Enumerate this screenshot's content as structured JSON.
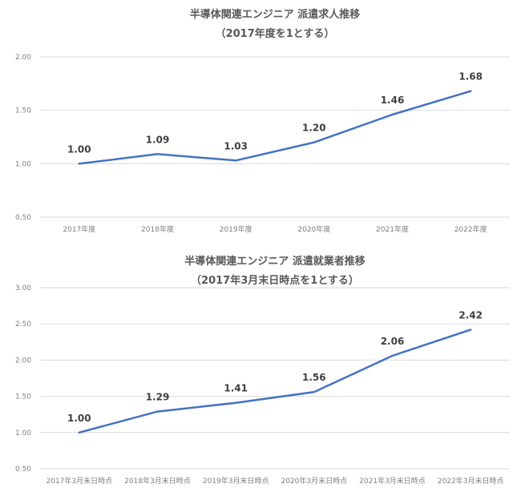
{
  "chart_data": [
    {
      "type": "line",
      "title": "半導体関連エンジニア 派遣求人推移",
      "subtitle": "（2017年度を1とする）",
      "categories": [
        "2017年度",
        "2018年度",
        "2019年度",
        "2020年度",
        "2021年度",
        "2022年度"
      ],
      "series": [
        {
          "values": [
            1.0,
            1.09,
            1.03,
            1.2,
            1.46,
            1.68
          ]
        }
      ],
      "data_labels": [
        "1.00",
        "1.09",
        "1.03",
        "1.20",
        "1.46",
        "1.68"
      ],
      "yticks": [
        "0.50",
        "1.00",
        "1.50",
        "2.00"
      ],
      "ylim": [
        0.5,
        2.0
      ],
      "xlabel": "",
      "ylabel": "",
      "grid": "horizontal",
      "legend": "none",
      "color": "#4472c4"
    },
    {
      "type": "line",
      "title": "半導体関連エンジニア 派遣就業者推移",
      "subtitle": "（2017年3月末日時点を1とする）",
      "categories": [
        "2017年3月末日時点",
        "2018年3月末日時点",
        "2019年3月末日時点",
        "2020年3月末日時点",
        "2021年3月末日時点",
        "2022年3月末日時点"
      ],
      "series": [
        {
          "values": [
            1.0,
            1.29,
            1.41,
            1.56,
            2.06,
            2.42
          ]
        }
      ],
      "data_labels": [
        "1.00",
        "1.29",
        "1.41",
        "1.56",
        "2.06",
        "2.42"
      ],
      "yticks": [
        "0.50",
        "1.00",
        "1.50",
        "2.00",
        "2.50",
        "3.00"
      ],
      "ylim": [
        0.5,
        3.0
      ],
      "xlabel": "",
      "ylabel": "",
      "grid": "horizontal",
      "legend": "none",
      "color": "#4472c4"
    }
  ]
}
